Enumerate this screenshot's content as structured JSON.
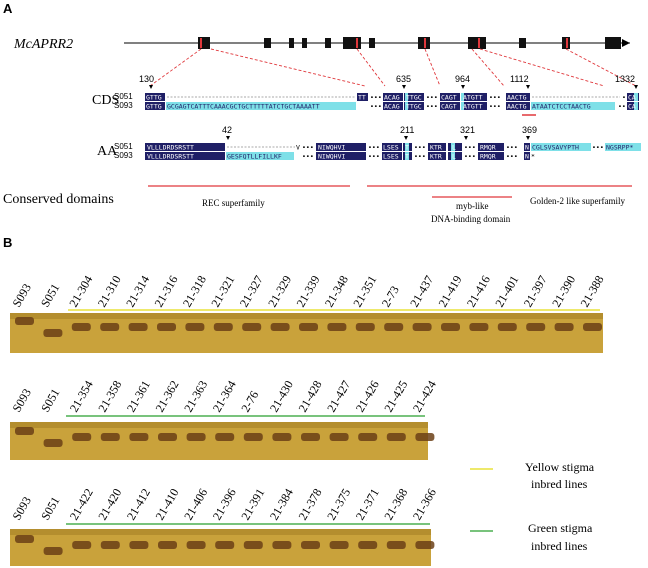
{
  "panel_a": {
    "letter": "A",
    "gene": "McAPRR2",
    "cds_label": "CDS",
    "aa_label": "AA",
    "domains_label": "Conserved domains",
    "samples": [
      "S051",
      "S093"
    ],
    "cds_positions": [
      "130",
      "635",
      "964",
      "1112",
      "1332"
    ],
    "aa_positions": [
      "42",
      "211",
      "321",
      "369"
    ],
    "cds_s051": [
      "GTTG",
      "TT",
      "ACAG",
      "TTGC",
      "CAGT",
      "ATGTT",
      "AACTG",
      "CA"
    ],
    "cds_s093": [
      "GTTG",
      "GCGAGTCATTTCAAACGCTGCTTTTTATCTGCTAAAATT",
      "ACAG",
      "TTGC",
      "CAGT",
      "ATGTT",
      "AACTG",
      "ATAATCTCCTAACTG",
      "CA"
    ],
    "aa_s051": [
      "VLLLDRDSRSTT",
      "V",
      "NIWQHVI",
      "LSES",
      "T",
      "KTR",
      "L",
      "RMQR",
      "N",
      "CGLSVSAVYPTH",
      "NGSRPP*"
    ],
    "aa_s093": [
      "VLLLDRDSRSTT",
      "GESFQTLLFILLKF",
      "NIWQHVI",
      "LSES",
      "T",
      "KTR",
      "L",
      "RMQR",
      "N",
      "*"
    ],
    "domains": [
      "REC superfamily",
      "myb-like",
      "DNA-binding domain",
      "Golden-2 like superfamily"
    ],
    "colors": {
      "navy": "#1f1f66",
      "cyan": "#7ee0e8",
      "red": "#e0383c",
      "exon": "#111111"
    }
  },
  "panel_b": {
    "letter": "B",
    "gels": [
      {
        "lanes": [
          "S093",
          "S051",
          "21-304",
          "21-310",
          "21-314",
          "21-316",
          "21-318",
          "21-321",
          "21-327",
          "21-329",
          "21-339",
          "21-348",
          "21-351",
          "2-73",
          "21-437",
          "21-419",
          "21-416",
          "21-401",
          "21-397",
          "21-390",
          "21-388"
        ],
        "underline_color": "#e8e23a"
      },
      {
        "lanes": [
          "S093",
          "S051",
          "21-354",
          "21-358",
          "21-361",
          "21-362",
          "21-363",
          "21-364",
          "2-76",
          "21-430",
          "21-428",
          "21-427",
          "21-426",
          "21-425",
          "21-424"
        ],
        "underline_color": "#4caf50"
      },
      {
        "lanes": [
          "S093",
          "S051",
          "21-422",
          "21-420",
          "21-412",
          "21-410",
          "21-406",
          "21-396",
          "21-391",
          "21-384",
          "21-378",
          "21-375",
          "21-371",
          "21-368",
          "21-366"
        ],
        "underline_color": "#4caf50"
      }
    ],
    "legend": [
      {
        "line1": "Yellow stigma",
        "line2": "inbred lines",
        "color": "#e8e23a"
      },
      {
        "line1": "Green stigma",
        "line2": "inbred lines",
        "color": "#4caf50"
      }
    ]
  }
}
